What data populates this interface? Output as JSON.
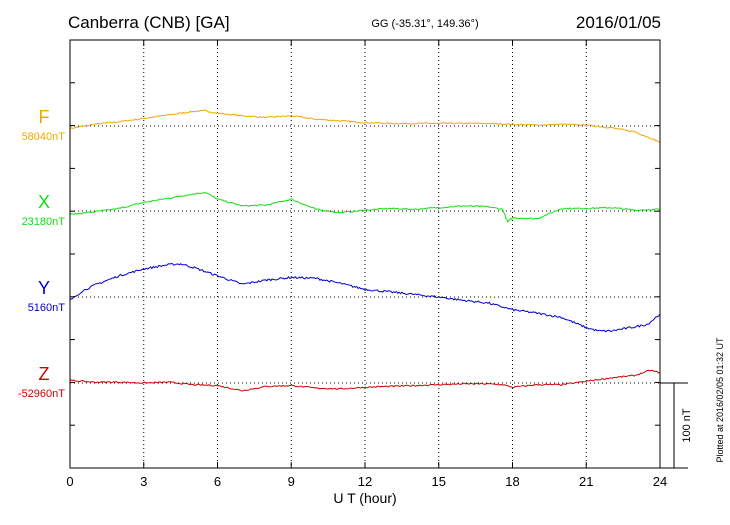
{
  "header": {
    "station": "Canberra (CNB)  [GA]",
    "coords": "GG (-35.31°, 149.36°)",
    "date": "2016/01/05"
  },
  "footer": {
    "xlabel": "U T (hour)",
    "plotted_note": "Plotted at 2016/02/05 01:32 UT",
    "scale_label": "100 nT"
  },
  "colors": {
    "F": "#f0a800",
    "X": "#10e010",
    "Y": "#0000d0",
    "Z": "#d00000",
    "axis": "#000000"
  },
  "chart_data": {
    "type": "line",
    "x_unit": "hour UT",
    "xlim": [
      0,
      24
    ],
    "x_ticks": [
      0,
      3,
      6,
      9,
      12,
      15,
      18,
      21,
      24
    ],
    "tick_labels": [
      "0",
      "3",
      "6",
      "9",
      "12",
      "15",
      "18",
      "21",
      "24"
    ],
    "scale_bar_nT": 100,
    "grid": true,
    "series": [
      {
        "name": "F",
        "baseline_label": "58040nT",
        "color": "#f0a800",
        "x": [
          0,
          1,
          2,
          3,
          4,
          5,
          5.5,
          6,
          7,
          8,
          9,
          10,
          11,
          12,
          13,
          14,
          15,
          16,
          17,
          18,
          19,
          20,
          21,
          22,
          23,
          24
        ],
        "y": [
          -3,
          2,
          5,
          9,
          13,
          17,
          18,
          15,
          12,
          10,
          12,
          8,
          6,
          4,
          3,
          3,
          3,
          3,
          3,
          2,
          1,
          2,
          1,
          -2,
          -7,
          -19
        ]
      },
      {
        "name": "X",
        "baseline_label": "23180nT",
        "color": "#10e010",
        "x": [
          0,
          1,
          2,
          3,
          4,
          5,
          5.5,
          6,
          7,
          8,
          9,
          10,
          11,
          12,
          13,
          14,
          15,
          16,
          17,
          17.6,
          17.8,
          18,
          19,
          20,
          21,
          22,
          23,
          24
        ],
        "y": [
          -4,
          -1,
          3,
          10,
          15,
          20,
          22,
          14,
          6,
          7,
          14,
          2,
          -2,
          1,
          3,
          2,
          4,
          6,
          5,
          2,
          -13,
          -8,
          -9,
          3,
          3,
          4,
          1,
          2
        ]
      },
      {
        "name": "Y",
        "baseline_label": "5160nT",
        "color": "#0000d0",
        "x": [
          0,
          0.5,
          1,
          2,
          3,
          4,
          4.5,
          5,
          6,
          7,
          8,
          9,
          10,
          11,
          12,
          13,
          14,
          15,
          16,
          17,
          18,
          19,
          20,
          21,
          21.5,
          22,
          23,
          23.5,
          24
        ],
        "y": [
          -4,
          7,
          14,
          25,
          33,
          38,
          39,
          35,
          25,
          15,
          20,
          23,
          22,
          16,
          9,
          6,
          3,
          0,
          -4,
          -7,
          -15,
          -19,
          -24,
          -36,
          -40,
          -40,
          -35,
          -32,
          -20
        ]
      },
      {
        "name": "Z",
        "baseline_label": "-52960nT",
        "color": "#d00000",
        "x": [
          0,
          1,
          2,
          3,
          4,
          5,
          6,
          7,
          8,
          9,
          10,
          11,
          12,
          13,
          14,
          15,
          16,
          17,
          17.6,
          18,
          19,
          20,
          21,
          22,
          23,
          23.6,
          24
        ],
        "y": [
          3,
          1,
          1,
          0,
          1,
          -2,
          -3,
          -9,
          -4,
          -3,
          -6,
          -7,
          -5,
          -4,
          -3,
          -2,
          -1,
          -1,
          -2,
          -5,
          -2,
          -2,
          2,
          6,
          9,
          15,
          12
        ]
      }
    ]
  }
}
